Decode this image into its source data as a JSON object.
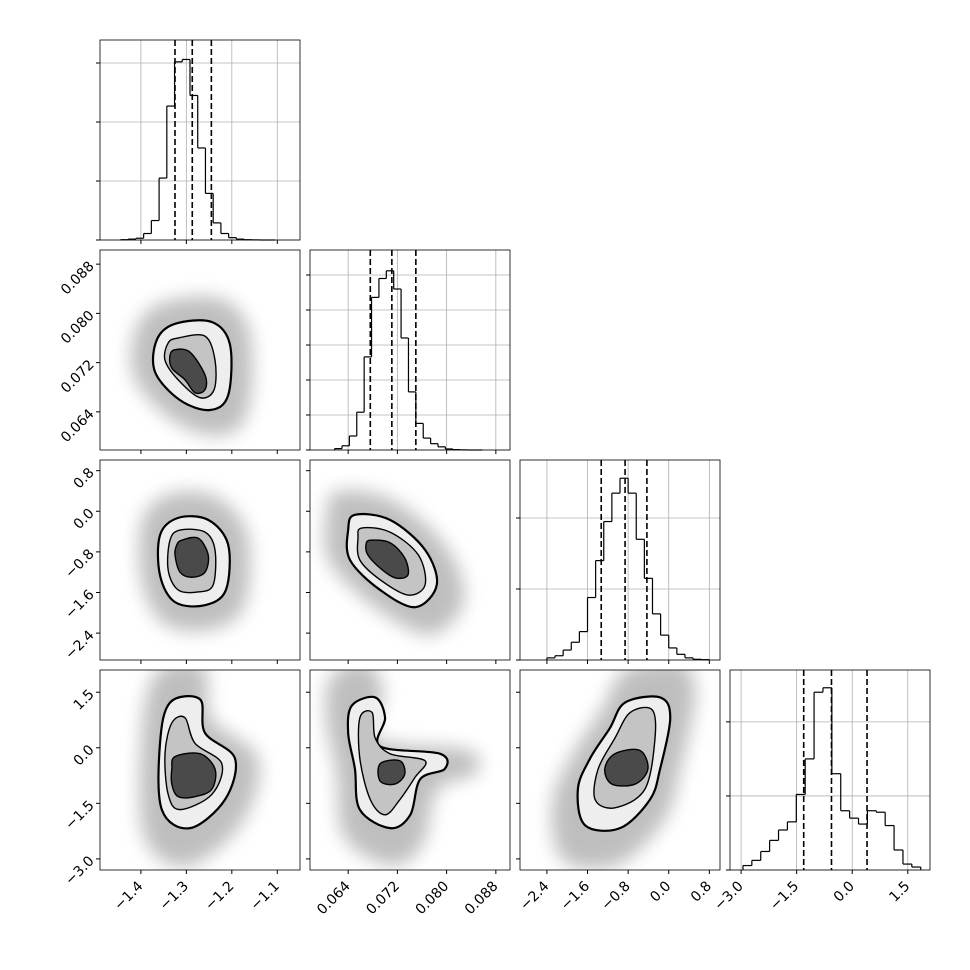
{
  "chart_data": {
    "type": "corner",
    "grid": true,
    "line_color": "#000000",
    "contour_fills": [
      "#eeeeee",
      "#c4c4c4",
      "#4a4a4a"
    ],
    "parameters": [
      {
        "lim": [
          -1.49,
          -1.05
        ],
        "ticks": [
          {
            "value": -1.4,
            "label": "−1.4"
          },
          {
            "value": -1.3,
            "label": "−1.3"
          },
          {
            "value": -1.2,
            "label": "−1.2"
          },
          {
            "value": -1.1,
            "label": "−1.1"
          }
        ]
      },
      {
        "lim": [
          0.0578,
          0.0903
        ],
        "ticks": [
          0.064,
          0.072,
          {
            "value": 0.08,
            "label": "0.080"
          },
          0.088
        ]
      },
      {
        "lim": [
          -2.93,
          1.01
        ],
        "ticks": [
          {
            "value": -2.4,
            "label": "−2.4"
          },
          {
            "value": -1.6,
            "label": "−1.6"
          },
          {
            "value": -0.8,
            "label": "−0.8"
          },
          {
            "value": 0,
            "label": "0.0"
          },
          0.8
        ]
      },
      {
        "lim": [
          -3.3,
          2.1
        ],
        "ticks": [
          {
            "value": -3,
            "label": "−3.0"
          },
          {
            "value": -1.5,
            "label": "−1.5"
          },
          {
            "value": 0,
            "label": "0.0"
          },
          1.5
        ]
      }
    ],
    "histograms": [
      {
        "bins": [
          -1.445,
          -1.428,
          -1.411,
          -1.394,
          -1.377,
          -1.36,
          -1.343,
          -1.326,
          -1.309,
          -1.292,
          -1.275,
          -1.258,
          -1.241,
          -1.224,
          -1.207,
          -1.19,
          -1.173,
          -1.156,
          -1.139,
          -1.122,
          -1.105
        ],
        "counts": [
          5,
          15,
          30,
          110,
          330,
          1050,
          2270,
          3020,
          3060,
          2450,
          1560,
          790,
          290,
          110,
          40,
          15,
          5,
          2,
          0,
          0
        ],
        "quantiles": [
          -1.325,
          -1.287,
          -1.245
        ],
        "ylim": [
          0,
          3390
        ],
        "yticks": [
          0,
          1000,
          2000,
          3000
        ]
      },
      {
        "bins": [
          0.0618,
          0.063,
          0.0642,
          0.0654,
          0.0666,
          0.0678,
          0.069,
          0.0702,
          0.0714,
          0.0726,
          0.0738,
          0.075,
          0.0762,
          0.0774,
          0.0786,
          0.0798,
          0.081,
          0.0822,
          0.0834,
          0.0846,
          0.0858
        ],
        "counts": [
          20,
          60,
          200,
          540,
          1330,
          2180,
          2450,
          2560,
          2300,
          1600,
          830,
          380,
          170,
          90,
          45,
          15,
          5,
          2,
          0,
          0
        ],
        "quantiles": [
          0.0676,
          0.0711,
          0.075
        ],
        "ylim": [
          0,
          2857
        ],
        "yticks": [
          0,
          500,
          1000,
          1500,
          2000,
          2500
        ]
      },
      {
        "bins": [
          -2.4,
          -2.24,
          -2.08,
          -1.92,
          -1.76,
          -1.6,
          -1.44,
          -1.28,
          -1.12,
          -0.96,
          -0.8,
          -0.64,
          -0.48,
          -0.32,
          -0.16,
          0,
          0.16,
          0.32,
          0.48,
          0.64,
          0.8
        ],
        "counts": [
          30,
          60,
          140,
          250,
          400,
          880,
          1400,
          1950,
          2350,
          2560,
          2350,
          1700,
          1150,
          650,
          350,
          170,
          80,
          30,
          10,
          5
        ],
        "quantiles": [
          -1.33,
          -0.86,
          -0.43
        ],
        "ylim": [
          0,
          2817
        ],
        "yticks": [
          0,
          1000,
          2000
        ]
      },
      {
        "bins": [
          -2.95,
          -2.71,
          -2.47,
          -2.23,
          -1.99,
          -1.75,
          -1.51,
          -1.27,
          -1.03,
          -0.79,
          -0.55,
          -0.31,
          -0.07,
          0.17,
          0.41,
          0.65,
          0.89,
          1.13,
          1.37,
          1.61,
          1.85
        ],
        "counts": [
          60,
          130,
          250,
          400,
          540,
          650,
          1020,
          1500,
          2400,
          2460,
          1300,
          800,
          700,
          620,
          800,
          780,
          600,
          270,
          80,
          40
        ],
        "quantiles": [
          -1.31,
          -0.56,
          0.4
        ],
        "ylim": [
          0,
          2700
        ],
        "yticks": [
          0,
          1000,
          2000
        ]
      }
    ],
    "pairs": [
      {
        "contours": [
          {
            "x": [
              -1.325,
              -1.244,
              -1.204,
              -1.208,
              -1.248,
              -1.314,
              -1.369,
              -1.365
            ],
            "y": [
              0.0783,
              0.0786,
              0.0749,
              0.0667,
              0.0643,
              0.0659,
              0.0705,
              0.0757
            ]
          },
          {
            "x": [
              -1.318,
              -1.259,
              -1.237,
              -1.239,
              -1.27,
              -1.318,
              -1.347,
              -1.34
            ],
            "y": [
              0.076,
              0.0763,
              0.0724,
              0.0676,
              0.0663,
              0.0692,
              0.0724,
              0.0752
            ]
          },
          {
            "x": [
              -1.325,
              -1.292,
              -1.259,
              -1.259,
              -1.281,
              -1.303,
              -1.332,
              -1.336
            ],
            "y": [
              0.0741,
              0.0737,
              0.07,
              0.0676,
              0.0671,
              0.0692,
              0.0711,
              0.0732
            ]
          }
        ]
      },
      {
        "contours": [
          {
            "x": [
              -1.318,
              -1.252,
              -1.208,
              -1.213,
              -1.259,
              -1.325,
              -1.358,
              -1.358
            ],
            "y": [
              -0.13,
              -0.17,
              -0.66,
              -1.55,
              -1.85,
              -1.79,
              -1.26,
              -0.47
            ]
          },
          {
            "x": [
              -1.314,
              -1.259,
              -1.237,
              -1.241,
              -1.274,
              -1.318,
              -1.34,
              -1.336
            ],
            "y": [
              -0.37,
              -0.41,
              -0.76,
              -1.45,
              -1.59,
              -1.55,
              -1.16,
              -0.57
            ]
          },
          {
            "x": [
              -1.31,
              -1.274,
              -1.252,
              -1.259,
              -1.288,
              -1.314,
              -1.325,
              -1.321
            ],
            "y": [
              -0.57,
              -0.53,
              -0.86,
              -1.2,
              -1.3,
              -1.2,
              -0.86,
              -0.66
            ]
          }
        ]
      },
      {
        "contours": [
          {
            "x": [
              0.0651,
              0.0708,
              0.0765,
              0.0784,
              0.0749,
              0.0692,
              0.0643,
              0.064
            ],
            "y": [
              -0.07,
              -0.17,
              -0.76,
              -1.45,
              -1.89,
              -1.55,
              -0.96,
              -0.37
            ]
          },
          {
            "x": [
              0.0662,
              0.0708,
              0.0754,
              0.0765,
              0.0737,
              0.0692,
              0.0659,
              0.0656
            ],
            "y": [
              -0.33,
              -0.41,
              -0.86,
              -1.45,
              -1.65,
              -1.35,
              -0.96,
              -0.53
            ]
          },
          {
            "x": [
              0.0676,
              0.0708,
              0.0732,
              0.0737,
              0.0716,
              0.0692,
              0.0672,
              0.0669
            ],
            "y": [
              -0.57,
              -0.62,
              -0.92,
              -1.26,
              -1.31,
              -1.12,
              -0.86,
              -0.66
            ]
          }
        ]
      },
      {
        "contours": [
          {
            "x": [
              -1.336,
              -1.27,
              -1.259,
              -1.193,
              -1.215,
              -1.292,
              -1.354,
              -1.358
            ],
            "y": [
              1.22,
              1.31,
              0.4,
              -0.29,
              -1.4,
              -2.17,
              -1.67,
              0.12
            ]
          },
          {
            "x": [
              -1.332,
              -1.303,
              -1.281,
              -1.222,
              -1.244,
              -1.314,
              -1.34,
              -1.347
            ],
            "y": [
              0.67,
              0.81,
              0.12,
              -0.43,
              -1.26,
              -1.67,
              -1.26,
              -0.16
            ]
          },
          {
            "x": [
              -1.325,
              -1.27,
              -1.237,
              -1.244,
              -1.281,
              -1.318,
              -1.332,
              -1.332
            ],
            "y": [
              -0.24,
              -0.16,
              -0.57,
              -1.12,
              -1.32,
              -1.32,
              -0.98,
              -0.57
            ]
          }
        ]
      },
      {
        "contours": [
          {
            "x": [
              0.0646,
              0.0684,
              0.07,
              0.0692,
              0.0789,
              0.0797,
              0.0757,
              0.0741,
              0.0708,
              0.0659,
              0.0651,
              0.064
            ],
            "y": [
              1.14,
              1.36,
              0.81,
              0.04,
              -0.16,
              -0.57,
              -0.85,
              -1.81,
              -2.17,
              -1.67,
              -0.57,
              0.4
            ]
          },
          {
            "x": [
              0.0659,
              0.0679,
              0.0684,
              0.0708,
              0.0765,
              0.0749,
              0.0724,
              0.07,
              0.0676,
              0.0659
            ],
            "y": [
              0.81,
              0.95,
              0.26,
              -0.16,
              -0.35,
              -0.79,
              -1.4,
              -1.81,
              -1.4,
              -0.29
            ]
          },
          {
            "x": [
              0.0692,
              0.0724,
              0.0732,
              0.0716,
              0.0692
            ],
            "y": [
              -0.43,
              -0.35,
              -0.71,
              -0.98,
              -0.9
            ]
          }
        ]
      },
      {
        "contours": [
          {
            "x": [
              -0.86,
              -0.17,
              0.03,
              -0.17,
              -0.37,
              -0.96,
              -1.65,
              -1.79,
              -1.55,
              -1.16
            ],
            "y": [
              1.22,
              1.36,
              0.81,
              -0.57,
              -1.4,
              -2.17,
              -2.09,
              -1.12,
              -0.29,
              0.53
            ]
          },
          {
            "x": [
              -0.76,
              -0.33,
              -0.27,
              -0.47,
              -1.06,
              -1.45,
              -1.39,
              -1.06
            ],
            "y": [
              0.95,
              1.03,
              0.26,
              -1.12,
              -1.62,
              -1.4,
              -0.57,
              0.26
            ]
          },
          {
            "x": [
              -1.06,
              -0.57,
              -0.41,
              -0.66,
              -1.12,
              -1.26
            ],
            "y": [
              -0.16,
              -0.07,
              -0.57,
              -0.98,
              -0.98,
              -0.57
            ]
          }
        ]
      }
    ]
  }
}
